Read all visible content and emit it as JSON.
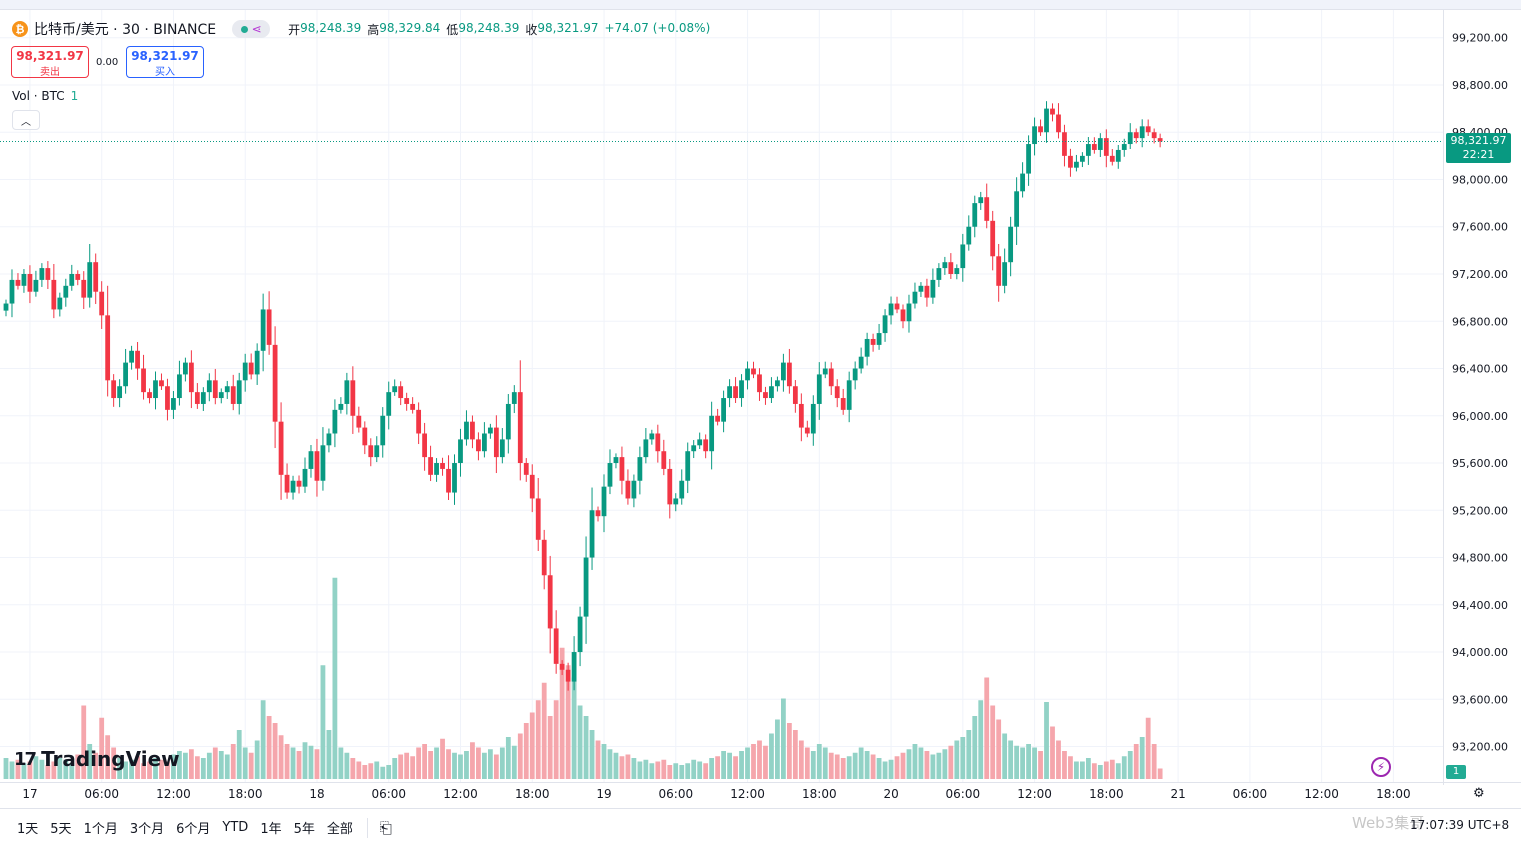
{
  "symbol": {
    "title": "比特币/美元 · 30 · BINANCE",
    "icon_glyph": "₿",
    "ohlc": {
      "open_label": "开",
      "open": "98,248.39",
      "high_label": "高",
      "high": "98,329.84",
      "low_label": "低",
      "low": "98,248.39",
      "close_label": "收",
      "close": "98,321.97",
      "change": "+74.07 (+0.08%)"
    }
  },
  "trade": {
    "sell_price": "98,321.97",
    "sell_label": "卖出",
    "spread": "0.00",
    "buy_price": "98,321.97",
    "buy_label": "买入"
  },
  "volume_indicator": {
    "label": "Vol · BTC",
    "value": "1"
  },
  "price_badge": {
    "price": "98,321.97",
    "countdown": "22:21"
  },
  "volume_badge": "1",
  "logo_text": "TradingView",
  "bottom_bar": {
    "ranges": [
      "1天",
      "5天",
      "1个月",
      "3个月",
      "6个月",
      "YTD",
      "1年",
      "5年",
      "全部"
    ],
    "time": "17:07:39 UTC+8",
    "watermark": "Web3集哥"
  },
  "colors": {
    "up": "#089981",
    "down": "#f23645",
    "vol_up": "#92d2c6",
    "vol_down": "#f5a6ac",
    "accent": "#2962ff"
  },
  "chart_data": {
    "type": "candlestick",
    "interval_minutes": 30,
    "ylim": [
      92900,
      99350
    ],
    "y_ticks": [
      93200,
      93600,
      94000,
      94400,
      94800,
      95200,
      95600,
      96000,
      96400,
      96800,
      97200,
      97600,
      98000,
      98400,
      98800,
      99200
    ],
    "y_tick_labels": [
      "93,200.00",
      "93,600.00",
      "94,000.00",
      "94,400.00",
      "94,800.00",
      "95,200.00",
      "95,600.00",
      "96,000.00",
      "96,400.00",
      "96,800.00",
      "97,200.00",
      "97,600.00",
      "98,000.00",
      "98,400.00",
      "98,800.00",
      "99,200.00"
    ],
    "x_labels": [
      {
        "label": "17",
        "bar": 2
      },
      {
        "label": "06:00",
        "bar": 14
      },
      {
        "label": "12:00",
        "bar": 26
      },
      {
        "label": "18:00",
        "bar": 38
      },
      {
        "label": "18",
        "bar": 50
      },
      {
        "label": "06:00",
        "bar": 62
      },
      {
        "label": "12:00",
        "bar": 74
      },
      {
        "label": "18:00",
        "bar": 86
      },
      {
        "label": "19",
        "bar": 98
      },
      {
        "label": "06:00",
        "bar": 110
      },
      {
        "label": "12:00",
        "bar": 122
      },
      {
        "label": "18:00",
        "bar": 134
      },
      {
        "label": "20",
        "bar": 146
      },
      {
        "label": "06:00",
        "bar": 158
      },
      {
        "label": "12:00",
        "bar": 170
      },
      {
        "label": "18:00",
        "bar": 182
      },
      {
        "label": "21",
        "bar": 194
      },
      {
        "label": "06:00",
        "bar": 206
      },
      {
        "label": "12:00",
        "bar": 218
      },
      {
        "label": "18:00",
        "bar": 230
      }
    ],
    "closes": [
      96950,
      97150,
      97100,
      97200,
      97050,
      97150,
      97250,
      97150,
      96900,
      97000,
      97100,
      97200,
      97150,
      97000,
      97300,
      97050,
      96850,
      96300,
      96150,
      96250,
      96450,
      96550,
      96400,
      96200,
      96150,
      96300,
      96250,
      96050,
      96150,
      96350,
      96450,
      96200,
      96100,
      96200,
      96300,
      96150,
      96200,
      96250,
      96100,
      96300,
      96450,
      96350,
      96550,
      96900,
      96600,
      95950,
      95500,
      95350,
      95450,
      95400,
      95550,
      95700,
      95450,
      95750,
      95850,
      96050,
      96100,
      96300,
      96000,
      95900,
      95750,
      95650,
      95750,
      96000,
      96200,
      96250,
      96150,
      96100,
      96050,
      95850,
      95650,
      95500,
      95600,
      95550,
      95350,
      95600,
      95800,
      95950,
      95800,
      95700,
      95850,
      95900,
      95650,
      95800,
      96100,
      96200,
      95600,
      95500,
      95300,
      94950,
      94650,
      94200,
      93900,
      93850,
      93750,
      94000,
      94300,
      94800,
      95200,
      95150,
      95400,
      95600,
      95650,
      95450,
      95300,
      95450,
      95650,
      95800,
      95850,
      95700,
      95550,
      95250,
      95300,
      95450,
      95700,
      95750,
      95800,
      95700,
      96000,
      95950,
      96150,
      96250,
      96150,
      96300,
      96400,
      96350,
      96200,
      96150,
      96250,
      96300,
      96450,
      96250,
      96100,
      95900,
      95850,
      96100,
      96350,
      96400,
      96250,
      96150,
      96050,
      96300,
      96400,
      96500,
      96650,
      96600,
      96700,
      96850,
      96950,
      96900,
      96800,
      96950,
      97050,
      97100,
      97000,
      97150,
      97250,
      97300,
      97200,
      97250,
      97450,
      97600,
      97800,
      97850,
      97650,
      97350,
      97100,
      97300,
      97600,
      97900,
      98050,
      98300,
      98450,
      98400,
      98600,
      98550,
      98400,
      98200,
      98100,
      98150,
      98200,
      98300,
      98250,
      98350,
      98200,
      98150,
      98250,
      98300,
      98400,
      98350,
      98450,
      98400,
      98350,
      98321.97
    ],
    "volume_scale": [
      0,
      12
    ],
    "volumes": [
      1.2,
      1.0,
      1.1,
      0.9,
      1.0,
      1.3,
      1.1,
      0.8,
      1.0,
      1.2,
      1.1,
      0.9,
      1.4,
      4.2,
      2.0,
      1.5,
      3.5,
      2.5,
      1.8,
      1.2,
      1.0,
      1.1,
      1.3,
      0.9,
      1.0,
      1.2,
      1.1,
      1.0,
      1.4,
      1.6,
      1.5,
      1.7,
      1.3,
      1.2,
      1.5,
      1.8,
      1.6,
      1.4,
      2.0,
      2.8,
      1.8,
      1.5,
      2.2,
      4.5,
      3.6,
      3.2,
      2.5,
      2.0,
      1.8,
      1.6,
      2.1,
      1.9,
      1.7,
      6.5,
      2.8,
      11.5,
      1.8,
      1.5,
      1.2,
      1.0,
      0.8,
      0.9,
      1.0,
      0.7,
      0.8,
      1.2,
      1.4,
      1.5,
      1.3,
      1.8,
      2.0,
      1.6,
      1.8,
      2.3,
      1.7,
      1.5,
      1.4,
      1.6,
      2.1,
      1.8,
      1.5,
      1.7,
      1.4,
      1.8,
      2.4,
      1.9,
      2.6,
      3.2,
      3.8,
      4.5,
      5.5,
      3.6,
      4.5,
      7.5,
      6.5,
      5.8,
      4.2,
      3.6,
      2.8,
      2.2,
      2.0,
      1.7,
      1.5,
      1.3,
      1.4,
      1.2,
      1.0,
      1.1,
      0.9,
      1.0,
      1.1,
      0.8,
      0.9,
      0.8,
      0.9,
      1.1,
      1.0,
      0.9,
      1.2,
      1.3,
      1.6,
      1.5,
      1.3,
      1.6,
      1.8,
      2.0,
      2.2,
      1.9,
      2.6,
      3.4,
      4.6,
      3.2,
      2.8,
      2.2,
      1.8,
      1.6,
      2.0,
      1.8,
      1.5,
      1.4,
      1.2,
      1.3,
      1.5,
      1.8,
      1.6,
      1.4,
      1.2,
      1.0,
      1.1,
      1.3,
      1.5,
      1.7,
      2.0,
      1.8,
      1.6,
      1.4,
      1.5,
      1.7,
      1.9,
      2.2,
      2.4,
      2.8,
      3.6,
      4.5,
      5.8,
      4.2,
      3.4,
      2.6,
      2.2,
      1.9,
      1.8,
      2.0,
      1.8,
      1.6,
      4.4,
      3.0,
      2.2,
      1.6,
      1.3,
      1.0,
      1.0,
      1.2,
      0.9,
      0.8,
      1.0,
      1.1,
      0.9,
      1.3,
      1.6,
      2.0,
      2.4,
      3.5,
      2.0,
      0.6
    ]
  }
}
